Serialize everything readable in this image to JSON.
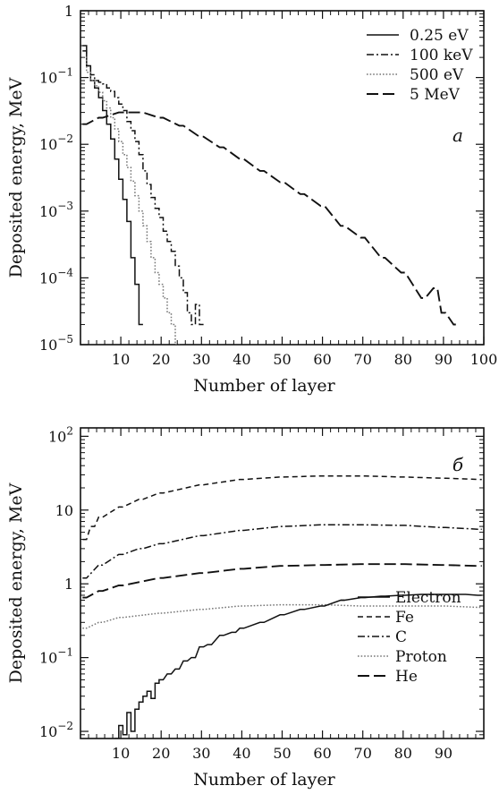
{
  "chart_data": [
    {
      "type": "line",
      "panel_label": "a",
      "xlabel": "Number of layer",
      "ylabel": "Deposited energy, MeV",
      "yscale": "log",
      "xlim": [
        0,
        100
      ],
      "ylim": [
        1e-05,
        1
      ],
      "x_ticks": [
        10,
        20,
        30,
        40,
        50,
        60,
        70,
        80,
        90,
        100
      ],
      "x_tick_labels": [
        "10",
        "20",
        "30",
        "40",
        "50",
        "60",
        "70",
        "80",
        "90",
        "100"
      ],
      "y_ticks": [
        1,
        0.1,
        0.01,
        0.001,
        0.0001,
        1e-05
      ],
      "y_tick_labels": [
        {
          "base": "1",
          "exp": ""
        },
        {
          "base": "10",
          "exp": "−1"
        },
        {
          "base": "10",
          "exp": "−2"
        },
        {
          "base": "10",
          "exp": "−3"
        },
        {
          "base": "10",
          "exp": "−4"
        },
        {
          "base": "10",
          "exp": "−5"
        }
      ],
      "legend_position": "top-right",
      "grid": false,
      "series": [
        {
          "name": "0.25 eV",
          "style": "solid",
          "x": [
            1,
            2,
            3,
            4,
            5,
            6,
            7,
            8,
            9,
            10,
            11,
            12,
            13,
            14,
            15
          ],
          "y": [
            0.3,
            0.15,
            0.09,
            0.07,
            0.05,
            0.032,
            0.02,
            0.012,
            0.006,
            0.003,
            0.0015,
            0.0007,
            0.0002,
            8e-05,
            2e-05
          ]
        },
        {
          "name": "100 keV",
          "style": "dashdot",
          "x": [
            1,
            2,
            3,
            4,
            5,
            6,
            7,
            8,
            9,
            10,
            11,
            12,
            13,
            14,
            15,
            16,
            17,
            18,
            19,
            20,
            21,
            22,
            23,
            24,
            25,
            26,
            27,
            28,
            29,
            30
          ],
          "y": [
            0.25,
            0.15,
            0.11,
            0.09,
            0.085,
            0.08,
            0.07,
            0.062,
            0.05,
            0.04,
            0.032,
            0.022,
            0.016,
            0.011,
            0.007,
            0.004,
            0.0025,
            0.0016,
            0.0011,
            0.0008,
            0.0005,
            0.00035,
            0.00025,
            0.00015,
            0.0001,
            6e-05,
            3e-05,
            2e-05,
            4e-05,
            2e-05
          ]
        },
        {
          "name": "500 eV",
          "style": "dotted",
          "x": [
            1,
            2,
            3,
            4,
            5,
            6,
            7,
            8,
            9,
            10,
            11,
            12,
            13,
            14,
            15,
            16,
            17,
            18,
            19,
            20,
            21,
            22,
            23,
            24
          ],
          "y": [
            0.2,
            0.12,
            0.09,
            0.075,
            0.06,
            0.045,
            0.035,
            0.025,
            0.017,
            0.011,
            0.007,
            0.0045,
            0.0028,
            0.0017,
            0.001,
            0.0006,
            0.00035,
            0.0002,
            0.00012,
            8e-05,
            5e-05,
            3e-05,
            2e-05,
            1e-05
          ]
        },
        {
          "name": "5 MeV",
          "style": "longdash",
          "x": [
            1,
            5,
            10,
            15,
            20,
            25,
            30,
            35,
            40,
            45,
            50,
            55,
            60,
            65,
            70,
            75,
            80,
            85,
            88,
            90,
            93
          ],
          "y": [
            0.02,
            0.025,
            0.03,
            0.03,
            0.025,
            0.019,
            0.013,
            0.009,
            0.006,
            0.004,
            0.0027,
            0.0018,
            0.0012,
            0.0006,
            0.0004,
            0.0002,
            0.00012,
            5e-05,
            7e-05,
            3e-05,
            2e-05
          ]
        }
      ]
    },
    {
      "type": "line",
      "panel_label": "б",
      "xlabel": "Number of layer",
      "ylabel": "Deposited energy, MeV",
      "yscale": "log",
      "xlim": [
        0,
        100
      ],
      "ylim": [
        0.008,
        130
      ],
      "x_ticks": [
        10,
        20,
        30,
        40,
        50,
        60,
        70,
        80,
        90
      ],
      "x_tick_labels": [
        "10",
        "20",
        "30",
        "40",
        "50",
        "60",
        "70",
        "80",
        "90"
      ],
      "y_ticks": [
        100,
        10,
        1,
        0.1,
        0.01
      ],
      "y_tick_labels": [
        {
          "base": "10",
          "exp": "2"
        },
        {
          "base": "10",
          "exp": ""
        },
        {
          "base": "1",
          "exp": ""
        },
        {
          "base": "10",
          "exp": "−1"
        },
        {
          "base": "10",
          "exp": "−2"
        }
      ],
      "legend_position": "bottom-right",
      "grid": false,
      "series": [
        {
          "name": "Electron",
          "style": "solid",
          "x": [
            65,
            70,
            75,
            80,
            85,
            90,
            95,
            99
          ],
          "y": [
            0.6,
            0.65,
            0.68,
            0.7,
            0.72,
            0.72,
            0.72,
            0.7
          ]
        },
        {
          "name": "Fe",
          "style": "dashed",
          "x": [
            1,
            3,
            5,
            10,
            15,
            20,
            30,
            40,
            50,
            60,
            70,
            80,
            90,
            99
          ],
          "y": [
            4,
            6,
            8,
            11,
            14,
            17,
            22,
            26,
            28,
            29,
            29,
            28,
            27,
            26
          ]
        },
        {
          "name": "C",
          "style": "dashdot",
          "x": [
            1,
            5,
            10,
            15,
            20,
            30,
            40,
            50,
            60,
            70,
            80,
            90,
            99
          ],
          "y": [
            1.2,
            1.8,
            2.5,
            3.0,
            3.5,
            4.5,
            5.3,
            6.0,
            6.3,
            6.3,
            6.2,
            5.8,
            5.5
          ]
        },
        {
          "name": "Proton",
          "style": "dotted",
          "x": [
            1,
            5,
            10,
            20,
            30,
            40,
            50,
            60,
            70,
            80,
            90,
            99
          ],
          "y": [
            0.25,
            0.3,
            0.35,
            0.4,
            0.45,
            0.5,
            0.52,
            0.52,
            0.5,
            0.5,
            0.5,
            0.48
          ]
        },
        {
          "name": "He",
          "style": "longdash",
          "x": [
            1,
            5,
            10,
            20,
            30,
            40,
            50,
            60,
            70,
            80,
            90,
            99
          ],
          "y": [
            0.65,
            0.8,
            0.95,
            1.2,
            1.4,
            1.6,
            1.75,
            1.8,
            1.85,
            1.85,
            1.8,
            1.75
          ]
        },
        {
          "name": "",
          "style": "solid",
          "x": [
            9,
            10,
            11,
            12,
            13,
            14,
            15,
            16,
            17,
            18,
            19,
            20,
            22,
            24,
            26,
            28,
            30,
            32,
            35,
            38,
            40,
            45,
            50,
            55,
            60,
            65
          ],
          "y": [
            0.008,
            0.012,
            0.009,
            0.018,
            0.01,
            0.02,
            0.025,
            0.03,
            0.035,
            0.028,
            0.045,
            0.05,
            0.06,
            0.07,
            0.09,
            0.1,
            0.14,
            0.15,
            0.2,
            0.22,
            0.25,
            0.3,
            0.38,
            0.45,
            0.5,
            0.6
          ]
        }
      ]
    }
  ]
}
